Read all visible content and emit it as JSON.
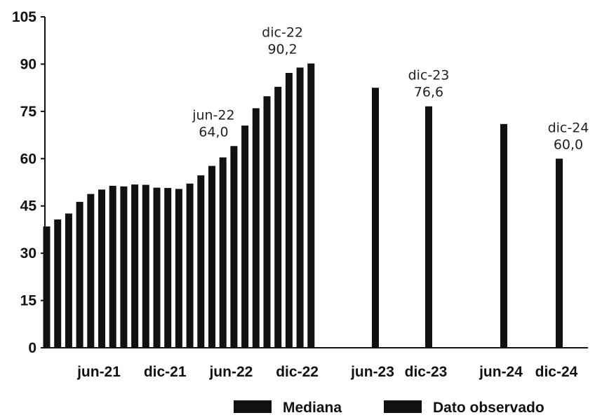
{
  "chart_data": {
    "type": "bar",
    "ylim": [
      0,
      105
    ],
    "yticks": [
      "0",
      "15",
      "30",
      "45",
      "60",
      "75",
      "90",
      "105"
    ],
    "x_labels": [
      "jun-21",
      "dic-21",
      "jun-22",
      "dic-22",
      "jun-23",
      "dic-23",
      "jun-24",
      "dic-24"
    ],
    "colors": {
      "bar": "#111111",
      "axis": "#111111"
    },
    "series": [
      {
        "name": "Dato observado",
        "values": [
          38.5,
          40.7,
          42.6,
          46.3,
          48.8,
          50.2,
          51.4,
          51.2,
          51.8,
          51.7,
          50.8,
          50.7,
          50.4,
          52.1,
          54.7,
          57.7,
          60.4,
          64.0,
          70.5,
          76.0,
          79.8,
          82.8,
          87.2,
          88.9,
          90.2
        ]
      },
      {
        "name": "Mediana",
        "points": [
          {
            "period": "jun-23",
            "value": 82.5
          },
          {
            "period": "dic-23",
            "value": 76.6
          },
          {
            "period": "jun-24",
            "value": 71.0
          },
          {
            "period": "dic-24",
            "value": 60.0
          }
        ]
      }
    ],
    "annotations": [
      {
        "period": "jun-22",
        "value": "64,0"
      },
      {
        "period": "dic-22",
        "value": "90,2"
      },
      {
        "period": "dic-23",
        "value": "76,6"
      },
      {
        "period": "dic-24",
        "value": "60,0"
      }
    ],
    "legend": [
      "Mediana",
      "Dato observado"
    ],
    "legend_position": "bottom-right"
  }
}
